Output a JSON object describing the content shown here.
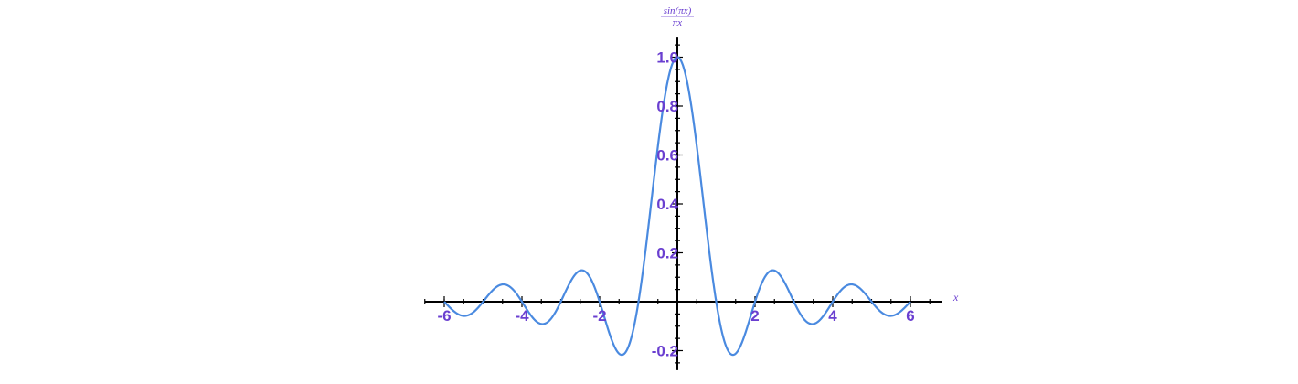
{
  "chart_data": {
    "type": "line",
    "title": "",
    "xlabel": "x",
    "ylabel": {
      "numerator": "sin(πx)",
      "denominator": "πx"
    },
    "xlim": [
      -6.5,
      6.8
    ],
    "ylim": [
      -0.28,
      1.08
    ],
    "x_ticks": [
      -6,
      -4,
      -2,
      2,
      4,
      6
    ],
    "x_tick_labels": [
      "-6",
      "-4",
      "-2",
      "2",
      "4",
      "6"
    ],
    "y_ticks": [
      -0.2,
      0.2,
      0.4,
      0.6,
      0.8,
      1.0
    ],
    "y_tick_labels": [
      "-0.2",
      "0.2",
      "0.4",
      "0.6",
      "0.8",
      "1.0"
    ],
    "grid": false,
    "series": [
      {
        "function": "sin(πx)/(πx)",
        "x_range": [
          -6,
          6
        ],
        "sampled_points": [
          {
            "x": -6,
            "y": 0
          },
          {
            "x": -5.5,
            "y": -0.058
          },
          {
            "x": -5,
            "y": 0
          },
          {
            "x": -4.5,
            "y": 0.071
          },
          {
            "x": -4,
            "y": 0
          },
          {
            "x": -3.5,
            "y": -0.091
          },
          {
            "x": -3,
            "y": 0
          },
          {
            "x": -2.5,
            "y": 0.127
          },
          {
            "x": -2,
            "y": 0
          },
          {
            "x": -1.43,
            "y": -0.217
          },
          {
            "x": -1,
            "y": 0
          },
          {
            "x": -0.5,
            "y": 0.637
          },
          {
            "x": 0,
            "y": 1.0
          },
          {
            "x": 0.5,
            "y": 0.637
          },
          {
            "x": 1,
            "y": 0
          },
          {
            "x": 1.43,
            "y": -0.217
          },
          {
            "x": 2,
            "y": 0
          },
          {
            "x": 2.5,
            "y": 0.127
          },
          {
            "x": 3,
            "y": 0
          },
          {
            "x": 3.5,
            "y": -0.091
          },
          {
            "x": 4,
            "y": 0
          },
          {
            "x": 4.5,
            "y": 0.071
          },
          {
            "x": 5,
            "y": 0
          },
          {
            "x": 5.5,
            "y": -0.058
          },
          {
            "x": 6,
            "y": 0
          }
        ]
      }
    ],
    "colors": {
      "curve": "#4a8ae0",
      "tick_label": "#6a3fd0",
      "axis": "#000000"
    }
  }
}
